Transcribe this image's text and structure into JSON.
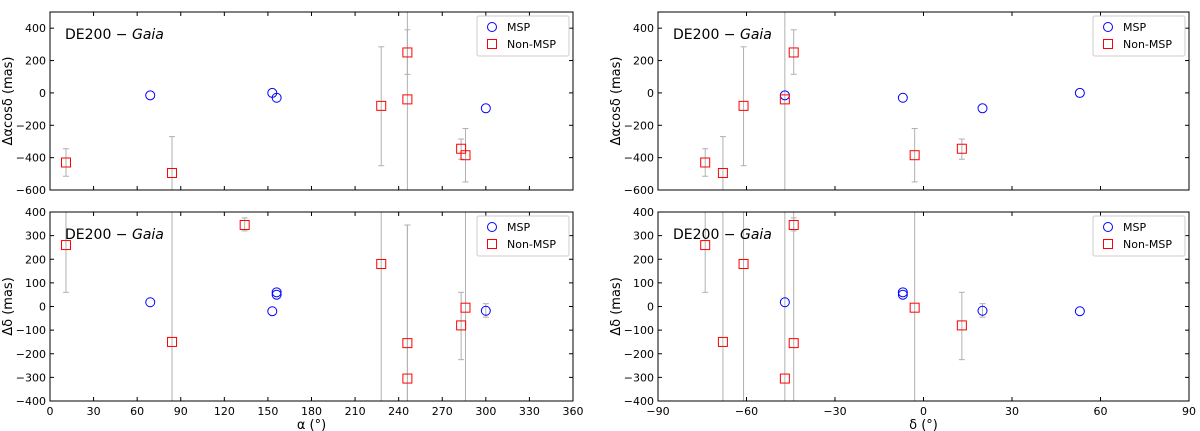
{
  "chart_data": [
    {
      "type": "scatter",
      "panel": "top-left",
      "title": "DE200 − Gaia",
      "title_prefix": "DE200 − ",
      "title_italic": "Gaia",
      "xlabel": "",
      "ylabel": "Δαcosδ (mas)",
      "xlim": [
        0,
        360
      ],
      "ylim": [
        -600,
        500
      ],
      "xticks": [
        0,
        30,
        60,
        90,
        120,
        150,
        180,
        210,
        240,
        270,
        300,
        330,
        360
      ],
      "yticks": [
        -600,
        -400,
        -200,
        0,
        200,
        400
      ],
      "show_xtick_labels": false,
      "legend": {
        "placement": "top-right",
        "entries": [
          {
            "label": "MSP",
            "marker": "circle",
            "color": "#0000ff"
          },
          {
            "label": "Non-MSP",
            "marker": "square",
            "color": "#ff0000"
          }
        ]
      },
      "series": [
        {
          "name": "MSP",
          "marker": "circle",
          "color": "#0000ff",
          "points": [
            {
              "x": 69,
              "y": -15
            },
            {
              "x": 153,
              "y": 0
            },
            {
              "x": 156,
              "y": -30
            },
            {
              "x": 300,
              "y": -95
            }
          ]
        },
        {
          "name": "Non-MSP",
          "marker": "square",
          "color": "#ff0000",
          "points": [
            {
              "x": 11,
              "y": -430,
              "yerr_low": -515,
              "yerr_high": -345
            },
            {
              "x": 84,
              "y": -495,
              "yerr_low": -600,
              "yerr_high": -270
            },
            {
              "x": 228,
              "y": -80,
              "yerr_low": -450,
              "yerr_high": 285
            },
            {
              "x": 246,
              "y": 250,
              "yerr_low": 115,
              "yerr_high": 390
            },
            {
              "x": 246,
              "y": -40,
              "yerr_low": -600,
              "yerr_high": 500
            },
            {
              "x": 283,
              "y": -345,
              "yerr_low": -410,
              "yerr_high": -285
            },
            {
              "x": 286,
              "y": -385,
              "yerr_low": -550,
              "yerr_high": -220
            }
          ]
        }
      ]
    },
    {
      "type": "scatter",
      "panel": "bottom-left",
      "title": "DE200 − Gaia",
      "title_prefix": "DE200 − ",
      "title_italic": "Gaia",
      "xlabel": "α (°)",
      "ylabel": "Δδ (mas)",
      "xlim": [
        0,
        360
      ],
      "ylim": [
        -400,
        400
      ],
      "xticks": [
        0,
        30,
        60,
        90,
        120,
        150,
        180,
        210,
        240,
        270,
        300,
        330,
        360
      ],
      "yticks": [
        -400,
        -300,
        -200,
        -100,
        0,
        100,
        200,
        300,
        400
      ],
      "show_xtick_labels": true,
      "legend": {
        "placement": "top-right",
        "entries": [
          {
            "label": "MSP",
            "marker": "circle",
            "color": "#0000ff"
          },
          {
            "label": "Non-MSP",
            "marker": "square",
            "color": "#ff0000"
          }
        ]
      },
      "series": [
        {
          "name": "MSP",
          "marker": "circle",
          "color": "#0000ff",
          "points": [
            {
              "x": 69,
              "y": 18
            },
            {
              "x": 153,
              "y": -20
            },
            {
              "x": 156,
              "y": 50
            },
            {
              "x": 156,
              "y": 60
            },
            {
              "x": 300,
              "y": -18,
              "yerr_low": -45,
              "yerr_high": 12
            }
          ]
        },
        {
          "name": "Non-MSP",
          "marker": "square",
          "color": "#ff0000",
          "points": [
            {
              "x": 11,
              "y": 260,
              "yerr_low": 60,
              "yerr_high": 400
            },
            {
              "x": 84,
              "y": -150,
              "yerr_low": -400,
              "yerr_high": 400
            },
            {
              "x": 134,
              "y": 345,
              "yerr_low": 320,
              "yerr_high": 375
            },
            {
              "x": 228,
              "y": 180,
              "yerr_low": -400,
              "yerr_high": 400
            },
            {
              "x": 246,
              "y": -155,
              "yerr_low": -400,
              "yerr_high": 345
            },
            {
              "x": 246,
              "y": -305,
              "yerr_low": -400,
              "yerr_high": 345
            },
            {
              "x": 283,
              "y": -80,
              "yerr_low": -225,
              "yerr_high": 60
            },
            {
              "x": 286,
              "y": -5,
              "yerr_low": -400,
              "yerr_high": 400
            }
          ]
        }
      ]
    },
    {
      "type": "scatter",
      "panel": "top-right",
      "title": "DE200 − Gaia",
      "title_prefix": "DE200 − ",
      "title_italic": "Gaia",
      "xlabel": "",
      "ylabel": "Δαcosδ (mas)",
      "xlim": [
        -90,
        90
      ],
      "ylim": [
        -600,
        500
      ],
      "xticks": [
        -90,
        -60,
        -30,
        0,
        30,
        60,
        90
      ],
      "yticks": [
        -600,
        -400,
        -200,
        0,
        200,
        400
      ],
      "show_xtick_labels": false,
      "legend": {
        "placement": "top-right",
        "entries": [
          {
            "label": "MSP",
            "marker": "circle",
            "color": "#0000ff"
          },
          {
            "label": "Non-MSP",
            "marker": "square",
            "color": "#ff0000"
          }
        ]
      },
      "series": [
        {
          "name": "MSP",
          "marker": "circle",
          "color": "#0000ff",
          "points": [
            {
              "x": -47,
              "y": -15
            },
            {
              "x": -7,
              "y": -30
            },
            {
              "x": 20,
              "y": -95
            },
            {
              "x": 53,
              "y": 0
            }
          ]
        },
        {
          "name": "Non-MSP",
          "marker": "square",
          "color": "#ff0000",
          "points": [
            {
              "x": -74,
              "y": -430,
              "yerr_low": -515,
              "yerr_high": -345
            },
            {
              "x": -68,
              "y": -495,
              "yerr_low": -600,
              "yerr_high": -270
            },
            {
              "x": -61,
              "y": -80,
              "yerr_low": -450,
              "yerr_high": 285
            },
            {
              "x": -47,
              "y": -40,
              "yerr_low": -600,
              "yerr_high": 500
            },
            {
              "x": -44,
              "y": 250,
              "yerr_low": 115,
              "yerr_high": 390
            },
            {
              "x": -3,
              "y": -385,
              "yerr_low": -550,
              "yerr_high": -220
            },
            {
              "x": 13,
              "y": -345,
              "yerr_low": -410,
              "yerr_high": -285
            }
          ]
        }
      ]
    },
    {
      "type": "scatter",
      "panel": "bottom-right",
      "title": "DE200 − Gaia",
      "title_prefix": "DE200 − ",
      "title_italic": "Gaia",
      "xlabel": "δ (°)",
      "ylabel": "Δδ (mas)",
      "xlim": [
        -90,
        90
      ],
      "ylim": [
        -400,
        400
      ],
      "xticks": [
        -90,
        -60,
        -30,
        0,
        30,
        60,
        90
      ],
      "yticks": [
        -400,
        -300,
        -200,
        -100,
        0,
        100,
        200,
        300,
        400
      ],
      "show_xtick_labels": true,
      "legend": {
        "placement": "top-right",
        "entries": [
          {
            "label": "MSP",
            "marker": "circle",
            "color": "#0000ff"
          },
          {
            "label": "Non-MSP",
            "marker": "square",
            "color": "#ff0000"
          }
        ]
      },
      "series": [
        {
          "name": "MSP",
          "marker": "circle",
          "color": "#0000ff",
          "points": [
            {
              "x": -47,
              "y": 18
            },
            {
              "x": -7,
              "y": 50
            },
            {
              "x": -7,
              "y": 60
            },
            {
              "x": 20,
              "y": -18,
              "yerr_low": -45,
              "yerr_high": 12
            },
            {
              "x": 53,
              "y": -20
            }
          ]
        },
        {
          "name": "Non-MSP",
          "marker": "square",
          "color": "#ff0000",
          "points": [
            {
              "x": -74,
              "y": 260,
              "yerr_low": 60,
              "yerr_high": 400
            },
            {
              "x": -68,
              "y": -150,
              "yerr_low": -400,
              "yerr_high": 400
            },
            {
              "x": -61,
              "y": 180,
              "yerr_low": -400,
              "yerr_high": 400
            },
            {
              "x": -47,
              "y": -305,
              "yerr_low": -400,
              "yerr_high": 400
            },
            {
              "x": -44,
              "y": 345,
              "yerr_low": 320,
              "yerr_high": 375
            },
            {
              "x": -44,
              "y": -155,
              "yerr_low": -400,
              "yerr_high": 400
            },
            {
              "x": -3,
              "y": -5,
              "yerr_low": -400,
              "yerr_high": 400
            },
            {
              "x": 13,
              "y": -80,
              "yerr_low": -225,
              "yerr_high": 60
            }
          ]
        }
      ]
    }
  ],
  "colors": {
    "msp": "#0000ff",
    "non_msp": "#ff0000",
    "errorbar": "#b0b0b0",
    "axes": "#000000"
  }
}
